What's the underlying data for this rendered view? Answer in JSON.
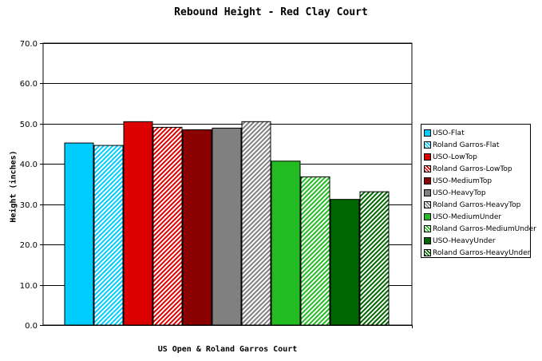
{
  "chart_data": {
    "type": "bar",
    "title": "Rebound Height - Red Clay Court",
    "xlabel": "US Open & Roland Garros Court",
    "ylabel": "Height (inches)",
    "ylim": [
      0,
      70
    ],
    "yticks": [
      "0.0",
      "10.0",
      "20.0",
      "30.0",
      "40.0",
      "50.0",
      "60.0",
      "70.0"
    ],
    "grid": true,
    "legend_position": "right",
    "series": [
      {
        "name": "USO-Flat",
        "value": 45.2,
        "color": "#00ccff",
        "hatched": false
      },
      {
        "name": "Roland Garros-Flat",
        "value": 44.6,
        "color": "#00ccff",
        "hatched": true
      },
      {
        "name": "USO-LowTop",
        "value": 50.5,
        "color": "#dd0000",
        "hatched": false
      },
      {
        "name": "Roland Garros-LowTop",
        "value": 49.1,
        "color": "#dd0000",
        "hatched": true
      },
      {
        "name": "USO-MediumTop",
        "value": 48.5,
        "color": "#8b0000",
        "hatched": false
      },
      {
        "name": "USO-HeavyTop",
        "value": 48.9,
        "color": "#808080",
        "hatched": false
      },
      {
        "name": "Roland Garros-HeavyTop",
        "value": 50.5,
        "color": "#808080",
        "hatched": true
      },
      {
        "name": "USO-MediumUnder",
        "value": 40.7,
        "color": "#22bb22",
        "hatched": false
      },
      {
        "name": "Roland Garros-MediumUnder",
        "value": 36.8,
        "color": "#22bb22",
        "hatched": true
      },
      {
        "name": "USO-HeavyUnder",
        "value": 31.2,
        "color": "#006600",
        "hatched": false
      },
      {
        "name": "Roland Garros-HeavyUnder",
        "value": 33.1,
        "color": "#006600",
        "hatched": true
      }
    ]
  }
}
